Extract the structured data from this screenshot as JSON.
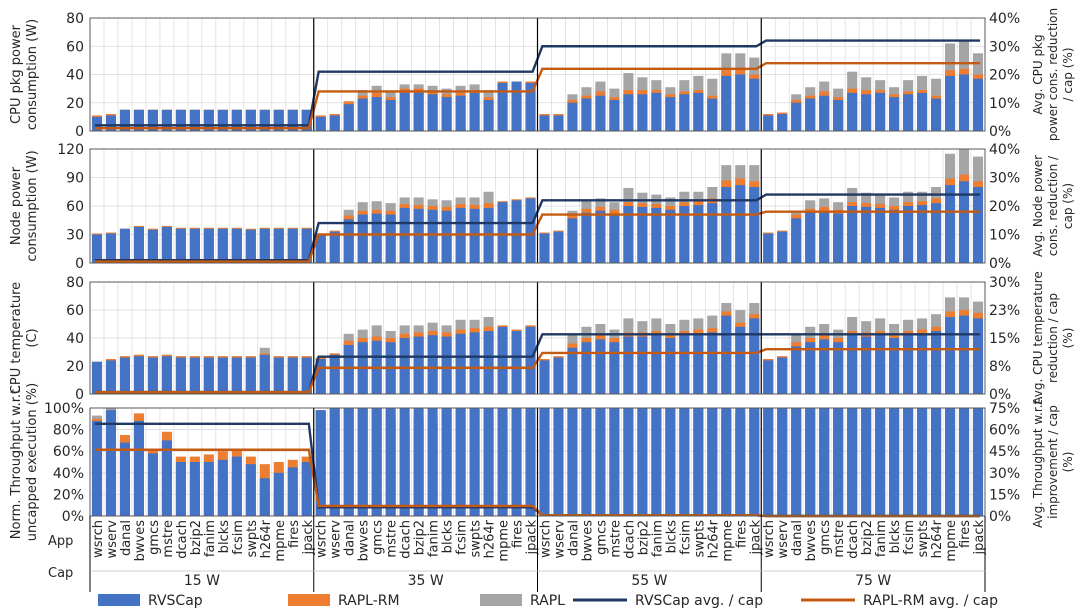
{
  "figure": {
    "apps_row_label": "App",
    "caps_row_label": "Cap",
    "cap_labels": [
      "15 W",
      "35 W",
      "55 W",
      "75 W"
    ],
    "apps": [
      "wsrch",
      "wserv",
      "danal",
      "bwves",
      "gmcs",
      "mstre",
      "dcach",
      "bzip2",
      "fanim",
      "blcks",
      "fcsim",
      "swpts",
      "h264r",
      "mpme",
      "fires",
      "jpack"
    ]
  },
  "legend": {
    "rvscap": "RVSCap",
    "raplrm": "RAPL-RM",
    "rapl": "RAPL",
    "rvscap_avg": "RVSCap avg. / cap",
    "raplrm_avg": "RAPL-RM avg. / cap"
  },
  "colors": {
    "rvscap": "#4472c4",
    "raplrm": "#ed7d31",
    "rapl": "#a5a5a5",
    "rvscap_avg": "#203864",
    "raplrm_avg": "#c55a11"
  },
  "chart_data": [
    {
      "type": "bar",
      "ylabel": "CPU pkg power consumption (W)",
      "y2label": "Avg. CPU pkg power cons. reduction / cap (%)",
      "ylim": [
        0,
        80
      ],
      "yticks": [
        0,
        20,
        40,
        60,
        80
      ],
      "y2lim": [
        0,
        40
      ],
      "y2ticks": [
        "0%",
        "10%",
        "20%",
        "30%",
        "40%"
      ],
      "series": [
        {
          "name": "RVSCap",
          "values": [
            [
              10,
              11,
              15,
              15,
              15,
              15,
              15,
              15,
              15,
              15,
              15,
              15,
              15,
              15,
              15,
              15
            ],
            [
              10,
              11,
              19,
              23,
              24,
              22,
              27,
              27,
              26,
              24,
              25,
              27,
              22,
              34,
              35,
              34
            ],
            [
              11,
              11,
              20,
              23,
              25,
              22,
              26,
              26,
              27,
              24,
              26,
              27,
              23,
              39,
              40,
              37
            ],
            [
              11,
              12,
              20,
              23,
              25,
              22,
              27,
              26,
              27,
              24,
              26,
              27,
              23,
              39,
              40,
              37
            ]
          ]
        },
        {
          "name": "RAPL-RM",
          "values": [
            [
              1,
              1,
              0,
              0,
              0,
              0,
              0,
              0,
              0,
              0,
              0,
              0,
              0,
              0,
              0,
              0
            ],
            [
              1,
              1,
              2,
              2,
              3,
              2,
              3,
              3,
              2,
              2,
              2,
              2,
              2,
              1,
              0,
              1
            ],
            [
              1,
              1,
              2,
              2,
              3,
              2,
              3,
              3,
              2,
              2,
              2,
              2,
              2,
              4,
              4,
              3
            ],
            [
              1,
              1,
              2,
              2,
              3,
              2,
              3,
              3,
              2,
              2,
              2,
              2,
              2,
              4,
              4,
              3
            ]
          ]
        },
        {
          "name": "RAPL",
          "values": [
            [
              0,
              0,
              0,
              0,
              0,
              0,
              0,
              0,
              0,
              0,
              0,
              0,
              0,
              0,
              0,
              0
            ],
            [
              0,
              0,
              0,
              4,
              5,
              4,
              3,
              3,
              4,
              4,
              5,
              4,
              5,
              0,
              0,
              0
            ],
            [
              0,
              0,
              4,
              6,
              7,
              6,
              12,
              9,
              7,
              5,
              8,
              10,
              12,
              12,
              11,
              12
            ],
            [
              0,
              0,
              4,
              6,
              7,
              6,
              12,
              9,
              7,
              5,
              8,
              10,
              12,
              19,
              20,
              15
            ]
          ]
        },
        {
          "name": "RVSCap avg. / cap",
          "values": [
            2,
            21,
            30,
            32
          ]
        },
        {
          "name": "RAPL-RM avg. / cap",
          "values": [
            1,
            14,
            22,
            24
          ]
        }
      ]
    },
    {
      "type": "bar",
      "ylabel": "Node power consumption (W)",
      "y2label": "Avg. Node power cons. reduction / cap (%)",
      "ylim": [
        0,
        120
      ],
      "yticks": [
        0,
        30,
        60,
        90,
        120
      ],
      "y2lim": [
        0,
        40
      ],
      "y2ticks": [
        "0%",
        "10%",
        "20%",
        "30%",
        "40%"
      ],
      "series": [
        {
          "name": "RVSCap",
          "values": [
            [
              30,
              31,
              36,
              38,
              35,
              38,
              36,
              36,
              36,
              36,
              36,
              35,
              36,
              36,
              36,
              36
            ],
            [
              30,
              33,
              46,
              51,
              52,
              51,
              58,
              57,
              56,
              55,
              58,
              57,
              58,
              64,
              66,
              68
            ],
            [
              31,
              33,
              47,
              53,
              55,
              52,
              60,
              59,
              58,
              56,
              60,
              61,
              63,
              80,
              82,
              80
            ],
            [
              31,
              33,
              47,
              53,
              55,
              52,
              60,
              59,
              58,
              56,
              60,
              61,
              63,
              82,
              86,
              80
            ]
          ]
        },
        {
          "name": "RAPL-RM",
          "values": [
            [
              1,
              1,
              0,
              1,
              1,
              1,
              1,
              1,
              1,
              1,
              1,
              1,
              1,
              1,
              1,
              1
            ],
            [
              1,
              1,
              4,
              4,
              4,
              4,
              4,
              4,
              4,
              4,
              4,
              4,
              5,
              1,
              1,
              1
            ],
            [
              1,
              1,
              4,
              4,
              4,
              4,
              4,
              4,
              4,
              4,
              4,
              4,
              5,
              7,
              7,
              6
            ],
            [
              1,
              1,
              4,
              4,
              4,
              4,
              4,
              4,
              4,
              4,
              4,
              4,
              5,
              7,
              7,
              6
            ]
          ]
        },
        {
          "name": "RAPL",
          "values": [
            [
              0,
              0,
              0,
              0,
              0,
              0,
              0,
              0,
              0,
              0,
              0,
              0,
              0,
              0,
              0,
              0
            ],
            [
              0,
              0,
              6,
              9,
              9,
              8,
              7,
              8,
              7,
              7,
              7,
              8,
              12,
              0,
              0,
              0
            ],
            [
              0,
              0,
              4,
              9,
              9,
              8,
              15,
              11,
              10,
              9,
              11,
              10,
              12,
              16,
              14,
              17
            ],
            [
              0,
              0,
              4,
              9,
              9,
              8,
              15,
              11,
              10,
              9,
              11,
              10,
              12,
              26,
              27,
              26
            ]
          ]
        },
        {
          "name": "RVSCap avg. / cap",
          "values": [
            1,
            14,
            22,
            24
          ]
        },
        {
          "name": "RAPL-RM avg. / cap",
          "values": [
            0.5,
            10,
            17,
            18
          ]
        }
      ]
    },
    {
      "type": "bar",
      "ylabel": "CPU temperature (C)",
      "y2label": "Avg. CPU temperature reduction / cap (%)",
      "ylim": [
        0,
        80
      ],
      "yticks": [
        0,
        20,
        40,
        60,
        80
      ],
      "y2lim": [
        0,
        30
      ],
      "y2ticks": [
        "0%",
        "8%",
        "15%",
        "23%",
        "30%"
      ],
      "series": [
        {
          "name": "RVSCap",
          "values": [
            [
              23,
              24,
              26,
              27,
              26,
              27,
              26,
              26,
              26,
              26,
              26,
              26,
              28,
              26,
              26,
              26
            ],
            [
              25,
              28,
              35,
              37,
              38,
              37,
              40,
              41,
              42,
              41,
              43,
              44,
              45,
              48,
              45,
              48
            ],
            [
              24,
              26,
              33,
              37,
              39,
              37,
              41,
              41,
              42,
              40,
              42,
              43,
              44,
              56,
              48,
              54
            ],
            [
              24,
              26,
              34,
              37,
              39,
              37,
              42,
              41,
              42,
              40,
              42,
              43,
              45,
              55,
              56,
              54
            ]
          ]
        },
        {
          "name": "RAPL-RM",
          "values": [
            [
              0,
              1,
              1,
              1,
              1,
              1,
              1,
              1,
              1,
              1,
              1,
              1,
              1,
              1,
              1,
              1
            ],
            [
              1,
              1,
              3,
              3,
              3,
              3,
              3,
              3,
              3,
              3,
              3,
              3,
              3,
              1,
              1,
              1
            ],
            [
              1,
              1,
              3,
              3,
              3,
              3,
              3,
              3,
              3,
              3,
              3,
              3,
              3,
              3,
              3,
              3
            ],
            [
              1,
              1,
              3,
              3,
              3,
              3,
              3,
              3,
              3,
              3,
              3,
              3,
              3,
              4,
              4,
              4
            ]
          ]
        },
        {
          "name": "RAPL",
          "values": [
            [
              0,
              0,
              0,
              0,
              0,
              0,
              0,
              0,
              0,
              0,
              0,
              0,
              4,
              0,
              0,
              0
            ],
            [
              0,
              0,
              5,
              6,
              8,
              5,
              6,
              5,
              6,
              5,
              7,
              6,
              7,
              0,
              0,
              0
            ],
            [
              0,
              0,
              6,
              8,
              8,
              6,
              10,
              8,
              9,
              7,
              8,
              8,
              9,
              6,
              9,
              8
            ],
            [
              0,
              0,
              6,
              8,
              8,
              6,
              10,
              8,
              9,
              7,
              8,
              8,
              9,
              10,
              9,
              8
            ]
          ]
        },
        {
          "name": "RVSCap avg. / cap",
          "values": [
            0.5,
            10,
            16,
            16
          ]
        },
        {
          "name": "RAPL-RM avg. / cap",
          "values": [
            0.5,
            7,
            11,
            12
          ]
        }
      ]
    },
    {
      "type": "bar",
      "ylabel": "Norm. Throughput w.r.t. uncapped execution (%)",
      "y2label": "Avg. Throughput w.r.t. improvement / cap (%)",
      "ylim": [
        0,
        100
      ],
      "yticks": [
        "0%",
        "20%",
        "40%",
        "60%",
        "80%",
        "100%"
      ],
      "y2lim": [
        0,
        75
      ],
      "y2ticks": [
        "0%",
        "15%",
        "30%",
        "45%",
        "60%",
        "75%"
      ],
      "series": [
        {
          "name": "RVSCap",
          "values": [
            [
              88,
              98,
              68,
              88,
              58,
              70,
              50,
              50,
              50,
              52,
              55,
              48,
              35,
              40,
              45,
              50
            ],
            [
              98,
              100,
              100,
              100,
              100,
              100,
              100,
              100,
              100,
              100,
              100,
              100,
              100,
              100,
              100,
              100
            ],
            [
              100,
              100,
              100,
              100,
              100,
              100,
              100,
              100,
              100,
              100,
              100,
              100,
              100,
              100,
              100,
              100
            ],
            [
              100,
              100,
              100,
              100,
              100,
              100,
              100,
              100,
              100,
              100,
              100,
              100,
              100,
              100,
              100,
              100
            ]
          ]
        },
        {
          "name": "RAPL-RM",
          "values": [
            [
              90,
              98,
              75,
              95,
              62,
              78,
              55,
              55,
              57,
              60,
              62,
              55,
              48,
              50,
              52,
              55
            ],
            [
              98,
              100,
              100,
              100,
              100,
              95,
              88,
              92,
              90,
              100,
              100,
              100,
              100,
              92,
              95,
              96
            ],
            [
              100,
              100,
              100,
              100,
              100,
              100,
              100,
              100,
              100,
              100,
              100,
              100,
              100,
              98,
              95,
              100
            ],
            [
              100,
              100,
              100,
              100,
              100,
              100,
              100,
              100,
              100,
              100,
              100,
              100,
              100,
              100,
              100,
              100
            ]
          ]
        },
        {
          "name": "RAPL",
          "values": [
            [
              93,
              100,
              70,
              90,
              40,
              60,
              30,
              33,
              33,
              38,
              38,
              30,
              30,
              18,
              18,
              25
            ],
            [
              98,
              100,
              100,
              100,
              100,
              90,
              82,
              88,
              85,
              100,
              100,
              100,
              100,
              72,
              80,
              82
            ],
            [
              100,
              100,
              100,
              100,
              100,
              100,
              100,
              100,
              100,
              100,
              100,
              100,
              100,
              90,
              88,
              100
            ],
            [
              100,
              100,
              100,
              100,
              100,
              100,
              100,
              100,
              100,
              100,
              100,
              100,
              100,
              100,
              100,
              100
            ]
          ]
        },
        {
          "name": "RVSCap avg. / cap",
          "values": [
            64,
            6,
            0.5,
            0
          ]
        },
        {
          "name": "RAPL-RM avg. / cap",
          "values": [
            46,
            7,
            0.5,
            0
          ]
        }
      ]
    }
  ]
}
